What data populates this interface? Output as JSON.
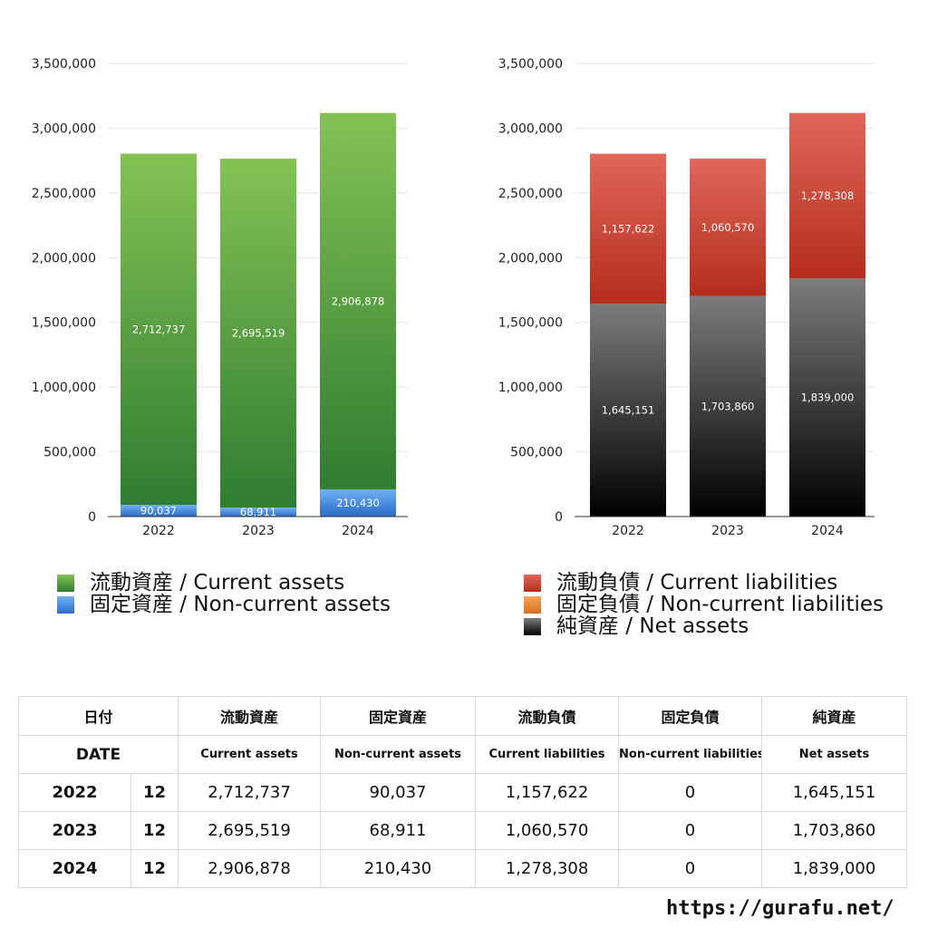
{
  "chart_data": [
    {
      "type": "bar",
      "stacked": true,
      "categories": [
        "2022",
        "2023",
        "2024"
      ],
      "series": [
        {
          "name": "固定資産 / Non-current assets",
          "values": [
            90037,
            68911,
            210430
          ],
          "color": "#4a8fe0"
        },
        {
          "name": "流動資産 / Current assets",
          "values": [
            2712737,
            2695519,
            2906878
          ],
          "color": "#58a844"
        }
      ],
      "ylim": [
        0,
        3500000
      ],
      "yticks": [
        "0",
        "500,000",
        "1,000,000",
        "1,500,000",
        "2,000,000",
        "2,500,000",
        "3,000,000",
        "3,500,000"
      ],
      "grid": true,
      "legend_position": "bottom"
    },
    {
      "type": "bar",
      "stacked": true,
      "categories": [
        "2022",
        "2023",
        "2024"
      ],
      "series": [
        {
          "name": "純資産 / Net assets",
          "values": [
            1645151,
            1703860,
            1839000
          ],
          "color": "#333333"
        },
        {
          "name": "固定負債 / Non-current liabilities",
          "values": [
            0,
            0,
            0
          ],
          "color": "#e8883a"
        },
        {
          "name": "流動負債 / Current liabilities",
          "values": [
            1157622,
            1060570,
            1278308
          ],
          "color": "#d0402f"
        }
      ],
      "ylim": [
        0,
        3500000
      ],
      "yticks": [
        "0",
        "500,000",
        "1,000,000",
        "1,500,000",
        "2,000,000",
        "2,500,000",
        "3,000,000",
        "3,500,000"
      ],
      "grid": true,
      "legend_position": "bottom"
    }
  ],
  "legends": {
    "left": [
      {
        "label": "流動資産 / Current assets",
        "color": "#58a844"
      },
      {
        "label": "固定資産 / Non-current assets",
        "color": "#4a8fe0"
      }
    ],
    "right": [
      {
        "label": "流動負債 / Current liabilities",
        "color": "#d0402f"
      },
      {
        "label": "固定負債 / Non-current liabilities",
        "color": "#e8883a"
      },
      {
        "label": "純資産 / Net assets",
        "color": "#333333"
      }
    ]
  },
  "table": {
    "header_jp": {
      "date": "日付",
      "current_assets": "流動資産",
      "noncurrent_assets": "固定資産",
      "current_liabilities": "流動負債",
      "noncurrent_liabilities": "固定負債",
      "net_assets": "純資産"
    },
    "header_en": {
      "date": "DATE",
      "current_assets": "Current assets",
      "noncurrent_assets": "Non-current assets",
      "current_liabilities": "Current liabilities",
      "noncurrent_liabilities": "Non-current liabilities",
      "net_assets": "Net assets"
    },
    "rows": [
      {
        "year": "2022",
        "month": "12",
        "current_assets": "2,712,737",
        "noncurrent_assets": "90,037",
        "current_liabilities": "1,157,622",
        "noncurrent_liabilities": "0",
        "net_assets": "1,645,151"
      },
      {
        "year": "2023",
        "month": "12",
        "current_assets": "2,695,519",
        "noncurrent_assets": "68,911",
        "current_liabilities": "1,060,570",
        "noncurrent_liabilities": "0",
        "net_assets": "1,703,860"
      },
      {
        "year": "2024",
        "month": "12",
        "current_assets": "2,906,878",
        "noncurrent_assets": "210,430",
        "current_liabilities": "1,278,308",
        "noncurrent_liabilities": "0",
        "net_assets": "1,839,000"
      }
    ]
  },
  "footer": {
    "url": "https://gurafu.net/"
  }
}
